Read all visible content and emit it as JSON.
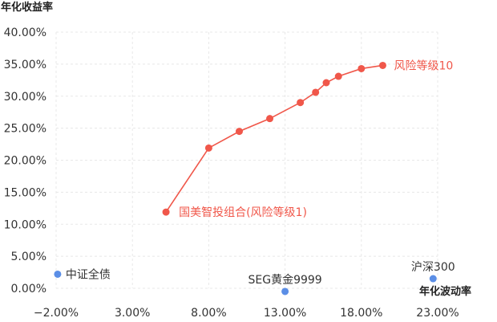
{
  "chart_data": {
    "type": "scatter",
    "xlabel": "年化波动率",
    "ylabel": "年化收益率",
    "xlim": [
      -2,
      23
    ],
    "ylim": [
      0,
      40
    ],
    "x_ticks": [
      "−2.00%",
      "3.00%",
      "8.00%",
      "13.00%",
      "18.00%",
      "23.00%"
    ],
    "x_tick_values": [
      -2,
      3,
      8,
      13,
      18,
      23
    ],
    "y_ticks": [
      "0.00%",
      "5.00%",
      "10.00%",
      "15.00%",
      "20.00%",
      "25.00%",
      "30.00%",
      "35.00%",
      "40.00%"
    ],
    "y_tick_values": [
      0,
      5,
      10,
      15,
      20,
      25,
      30,
      35,
      40
    ],
    "grid": true,
    "series": [
      {
        "type": "line",
        "color": "#f0574a",
        "points": [
          {
            "x": 5.2,
            "y": 11.9
          },
          {
            "x": 8.0,
            "y": 21.9
          },
          {
            "x": 10.0,
            "y": 24.5
          },
          {
            "x": 12.0,
            "y": 26.5
          },
          {
            "x": 14.0,
            "y": 29.0
          },
          {
            "x": 15.0,
            "y": 30.6
          },
          {
            "x": 15.7,
            "y": 32.1
          },
          {
            "x": 16.5,
            "y": 33.1
          },
          {
            "x": 18.0,
            "y": 34.3
          },
          {
            "x": 19.4,
            "y": 34.8
          }
        ],
        "start_label": "国美智投组合(风险等级1)",
        "end_label": "风险等级10"
      }
    ],
    "benchmarks": {
      "color": "#5b8ee6",
      "points": [
        {
          "name": "中证全债",
          "x": -1.9,
          "y": 2.2
        },
        {
          "name": "SEG黄金9999",
          "x": 13.0,
          "y": -0.5
        },
        {
          "name": "沪深300",
          "x": 22.7,
          "y": 1.5
        }
      ]
    }
  }
}
